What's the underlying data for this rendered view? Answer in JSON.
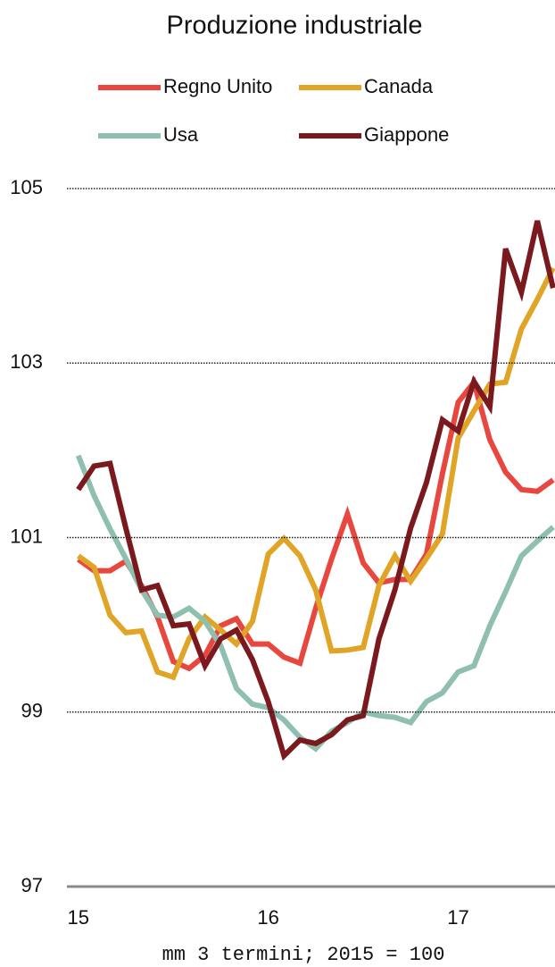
{
  "chart_data": {
    "type": "line",
    "title": "Produzione industriale",
    "note": "mm 3 termini; 2015 = 100",
    "x": [
      15,
      15.083,
      15.167,
      15.25,
      15.333,
      15.417,
      15.5,
      15.583,
      15.667,
      15.75,
      15.833,
      15.917,
      16,
      16.083,
      16.167,
      16.25,
      16.333,
      16.417,
      16.5,
      16.583,
      16.667,
      16.75,
      16.833,
      16.917,
      17,
      17.083,
      17.167,
      17.25,
      17.333,
      17.417,
      17.5
    ],
    "xlim": [
      14.94,
      17.51
    ],
    "xticks": [
      15,
      16,
      17
    ],
    "ylim": [
      97,
      105
    ],
    "yticks": [
      97,
      99,
      101,
      103,
      105
    ],
    "grid": true,
    "series": [
      {
        "name": "Regno Unito",
        "color": "#e8473f",
        "values": [
          100.75,
          100.62,
          100.62,
          100.73,
          100.45,
          100.09,
          99.58,
          99.5,
          99.65,
          99.99,
          100.07,
          99.78,
          99.78,
          99.63,
          99.56,
          100.19,
          100.75,
          101.27,
          100.71,
          100.48,
          100.52,
          100.52,
          100.81,
          101.73,
          102.55,
          102.78,
          102.12,
          101.75,
          101.55,
          101.53,
          101.66
        ]
      },
      {
        "name": "Canada",
        "color": "#e0a526",
        "values": [
          100.79,
          100.66,
          100.11,
          99.91,
          99.93,
          99.46,
          99.4,
          99.84,
          100.09,
          99.94,
          99.78,
          100.04,
          100.81,
          100.99,
          100.79,
          100.4,
          99.7,
          99.71,
          99.74,
          100.45,
          100.79,
          100.5,
          100.76,
          101.04,
          102.14,
          102.45,
          102.76,
          102.78,
          103.39,
          103.73,
          104.09
        ]
      },
      {
        "name": "Usa",
        "color": "#8ebfb0",
        "values": [
          101.94,
          101.48,
          101.1,
          100.76,
          100.4,
          100.11,
          100.09,
          100.19,
          100.04,
          99.76,
          99.27,
          99.09,
          99.05,
          98.91,
          98.71,
          98.58,
          98.78,
          98.88,
          99.0,
          98.96,
          98.94,
          98.88,
          99.12,
          99.22,
          99.46,
          99.53,
          99.99,
          100.38,
          100.79,
          100.96,
          101.12
        ]
      },
      {
        "name": "Giappone",
        "color": "#7b1a1e",
        "values": [
          101.55,
          101.82,
          101.85,
          101.11,
          100.4,
          100.45,
          99.99,
          100.01,
          99.53,
          99.84,
          99.94,
          99.6,
          99.12,
          98.5,
          98.68,
          98.64,
          98.74,
          98.91,
          98.96,
          99.84,
          100.4,
          101.11,
          101.63,
          102.35,
          102.22,
          102.79,
          102.5,
          104.31,
          103.81,
          104.63,
          103.86
        ]
      }
    ]
  }
}
